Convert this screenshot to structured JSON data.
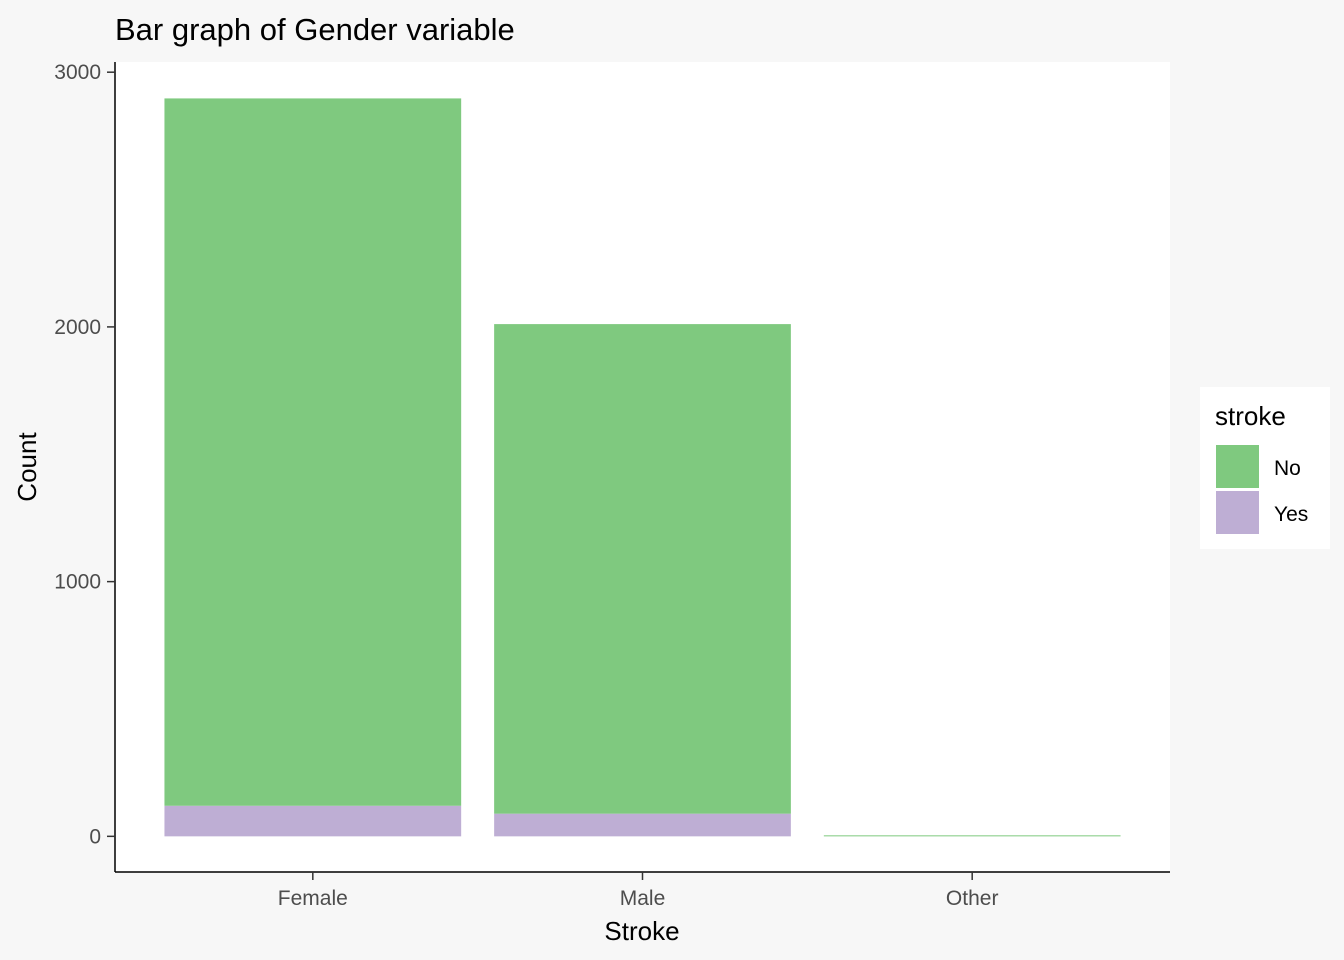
{
  "chart_data": {
    "type": "bar",
    "stacked": true,
    "title": "Bar graph of Gender variable",
    "xlabel": "Stroke",
    "ylabel": "Count",
    "categories": [
      "Female",
      "Male",
      "Other"
    ],
    "series": [
      {
        "name": "No",
        "values": [
          2777,
          1922,
          1
        ],
        "color": "#7fc97f"
      },
      {
        "name": "Yes",
        "values": [
          120,
          89,
          0
        ],
        "color": "#beaed4"
      }
    ],
    "yticks": [
      0,
      1000,
      2000,
      3000
    ],
    "ytick_labels": [
      "0",
      "1000",
      "2000",
      "3000"
    ],
    "ylim": [
      -140,
      3040
    ],
    "legend": {
      "title": "stroke",
      "position": "right"
    },
    "grid": false
  }
}
